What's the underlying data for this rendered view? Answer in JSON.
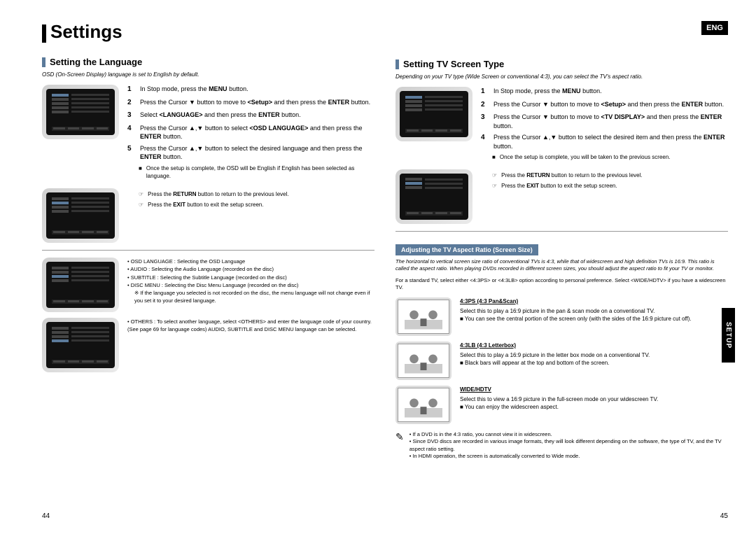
{
  "langBadge": "ENG",
  "sideTab": "SETUP",
  "pageLeftNum": "44",
  "pageRightNum": "45",
  "mainTitle": "Settings",
  "left": {
    "heading": "Setting the Language",
    "intro": "OSD (On-Screen Display) language is set to English by default.",
    "steps1": [
      {
        "n": "1",
        "html": "In Stop mode, press the <b>MENU</b> button."
      },
      {
        "n": "2",
        "html": "Press the Cursor ▼ button to move to <b>&lt;Setup&gt;</b> and then press the <b>ENTER</b> button."
      },
      {
        "n": "3",
        "html": "Select <b>&lt;LANGUAGE&gt;</b> and then press the <b>ENTER</b> button."
      },
      {
        "n": "4",
        "html": "Press the Cursor ▲,▼ button to select <b>&lt;OSD LANGUAGE&gt;</b> and then press the <b>ENTER</b> button."
      },
      {
        "n": "5",
        "html": "Press the Cursor ▲,▼ button to select the desired language and then press the <b>ENTER</b> button."
      }
    ],
    "completeNote": "Once the setup is complete, the OSD will be English if English has been selected as language.",
    "returnNote": "Press the RETURN button to return to the previous level.",
    "exitNote": "Press the EXIT button to exit the setup screen.",
    "bullets": [
      "OSD LANGUAGE : Selecting the OSD Language",
      "AUDIO : Selecting the Audio Language (recorded on the disc)",
      "SUBTITLE : Selecting the Subtitle Language (recorded on the disc)",
      "DISC MENU : Selecting the Disc Menu Language (recorded on the disc)"
    ],
    "bulletSubNote": "If the language you selected is not recorded on the disc, the menu language will not change even if you set it to your desired language.",
    "othersNote": "OTHERS : To select another language, select <OTHERS> and enter the language code of your country. (See page 69 for language codes) AUDIO, SUBTITLE and DISC MENU language can be selected."
  },
  "right": {
    "heading": "Setting TV Screen Type",
    "intro": "Depending on your TV type (Wide Screen or conventional 4:3), you can select the TV's aspect ratio.",
    "steps": [
      {
        "n": "1",
        "html": "In Stop mode, press the <b>MENU</b> button."
      },
      {
        "n": "2",
        "html": "Press the Cursor ▼ button to move to <b>&lt;Setup&gt;</b> and then press the <b>ENTER</b> button."
      },
      {
        "n": "3",
        "html": "Press the Cursor ▼ button to move to <b>&lt;TV DISPLAY&gt;</b> and then press the <b>ENTER</b> button."
      },
      {
        "n": "4",
        "html": "Press the Cursor ▲,▼ button to select the desired item and then press the <b>ENTER</b> button."
      }
    ],
    "completeNote": "Once the setup is complete, you will be taken to the previous screen.",
    "returnNote": "Press the RETURN button to return to the previous level.",
    "exitNote": "Press the EXIT button to exit the setup screen.",
    "subHead": "Adjusting the TV Aspect Ratio (Screen Size)",
    "subIntro": "The horizontal to vertical screen size ratio of conventional TVs is 4:3, while that of widescreen and high definition TVs is 16:9. This ratio is called the aspect ratio. When playing DVDs recorded in different screen sizes, you should adjust the aspect ratio to fit your TV or monitor.",
    "subIntro2": "For a standard TV, select either <4:3PS> or <4:3LB> option according to personal preference. Select <WIDE/HDTV> if you have a widescreen TV.",
    "ratios": [
      {
        "title": "4:3PS (4:3 Pan&Scan)",
        "desc": "Select this to play a 16:9 picture in the pan & scan mode on a conventional TV.",
        "note": "You can see the central portion of the screen only (with the sides of the 16:9 picture cut off)."
      },
      {
        "title": "4:3LB (4:3 Letterbox)",
        "desc": "Select this to play a 16:9 picture in the letter box mode on a conventional TV.",
        "note": "Black bars will appear at the top and bottom of the screen."
      },
      {
        "title": "WIDE/HDTV",
        "desc": "Select this to view a 16:9 picture in the full-screen mode on your widescreen TV.",
        "note": "You can enjoy the widescreen aspect."
      }
    ],
    "footNotes": [
      "If a DVD is in the 4:3 ratio, you cannot view it in widescreen.",
      "Since DVD discs are recorded in various image formats, they will look different depending on the software, the type of TV, and the TV aspect ratio setting.",
      "In HDMI operation, the screen is automatically converted to Wide mode."
    ]
  }
}
